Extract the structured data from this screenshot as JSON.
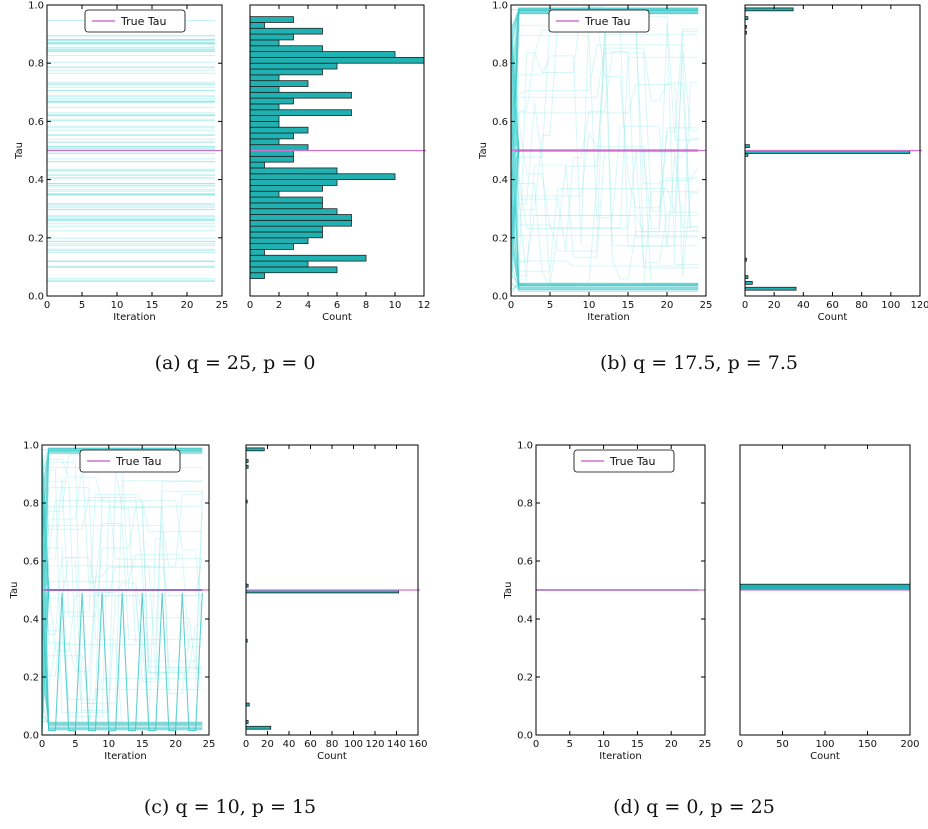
{
  "figure": {
    "legend_label": "True Tau",
    "true_tau": 0.5,
    "colors": {
      "trace": "#7fe3e3",
      "trace_bold": "#3cc8c8",
      "bar_fill": "#20b2b2",
      "bar_edge": "#222222",
      "true_tau_line": "#d070d0",
      "converged_line": "#4060d0"
    }
  },
  "chart_data": [
    {
      "id": "a",
      "caption": "(a) q = 25, p = 0",
      "type": "line",
      "xlabel": "Iteration",
      "ylabel": "Tau",
      "xlim": [
        0,
        25
      ],
      "ylim": [
        0,
        1
      ],
      "x_ticks": [
        "0",
        "5",
        "10",
        "15",
        "20",
        "25"
      ],
      "y_ticks": [
        "0.0",
        "0.2",
        "0.4",
        "0.6",
        "0.8",
        "1.0"
      ],
      "trace_style": "flat",
      "hist": {
        "type": "bar",
        "orientation": "horizontal",
        "xlabel": "Count",
        "xlim": [
          0,
          12
        ],
        "x_ticks": [
          "0",
          "2",
          "4",
          "6",
          "8",
          "10",
          "12"
        ],
        "bin_width": 0.02,
        "bins": [
          {
            "y": 0.06,
            "count": 1
          },
          {
            "y": 0.08,
            "count": 6
          },
          {
            "y": 0.1,
            "count": 4
          },
          {
            "y": 0.12,
            "count": 8
          },
          {
            "y": 0.14,
            "count": 1
          },
          {
            "y": 0.16,
            "count": 3
          },
          {
            "y": 0.18,
            "count": 4
          },
          {
            "y": 0.2,
            "count": 5
          },
          {
            "y": 0.22,
            "count": 5
          },
          {
            "y": 0.24,
            "count": 7
          },
          {
            "y": 0.26,
            "count": 7
          },
          {
            "y": 0.28,
            "count": 6
          },
          {
            "y": 0.3,
            "count": 5
          },
          {
            "y": 0.32,
            "count": 5
          },
          {
            "y": 0.34,
            "count": 2
          },
          {
            "y": 0.36,
            "count": 5
          },
          {
            "y": 0.38,
            "count": 6
          },
          {
            "y": 0.4,
            "count": 10
          },
          {
            "y": 0.42,
            "count": 6
          },
          {
            "y": 0.44,
            "count": 1
          },
          {
            "y": 0.46,
            "count": 3
          },
          {
            "y": 0.48,
            "count": 3
          },
          {
            "y": 0.5,
            "count": 4
          },
          {
            "y": 0.52,
            "count": 2
          },
          {
            "y": 0.54,
            "count": 3
          },
          {
            "y": 0.56,
            "count": 4
          },
          {
            "y": 0.58,
            "count": 2
          },
          {
            "y": 0.6,
            "count": 2
          },
          {
            "y": 0.62,
            "count": 7
          },
          {
            "y": 0.64,
            "count": 2
          },
          {
            "y": 0.66,
            "count": 3
          },
          {
            "y": 0.68,
            "count": 7
          },
          {
            "y": 0.7,
            "count": 2
          },
          {
            "y": 0.72,
            "count": 4
          },
          {
            "y": 0.74,
            "count": 2
          },
          {
            "y": 0.76,
            "count": 5
          },
          {
            "y": 0.78,
            "count": 6
          },
          {
            "y": 0.8,
            "count": 12
          },
          {
            "y": 0.82,
            "count": 10
          },
          {
            "y": 0.84,
            "count": 5
          },
          {
            "y": 0.86,
            "count": 2
          },
          {
            "y": 0.88,
            "count": 3
          },
          {
            "y": 0.9,
            "count": 5
          },
          {
            "y": 0.92,
            "count": 1
          },
          {
            "y": 0.94,
            "count": 3
          }
        ]
      }
    },
    {
      "id": "b",
      "caption": "(b) q = 17.5, p = 7.5",
      "type": "line",
      "xlabel": "Iteration",
      "ylabel": "Tau",
      "xlim": [
        0,
        25
      ],
      "ylim": [
        0,
        1
      ],
      "x_ticks": [
        "0",
        "5",
        "10",
        "15",
        "20",
        "25"
      ],
      "y_ticks": [
        "0.0",
        "0.2",
        "0.4",
        "0.6",
        "0.8",
        "1.0"
      ],
      "trace_style": "converge",
      "hist": {
        "type": "bar",
        "orientation": "horizontal",
        "xlabel": "Count",
        "xlim": [
          0,
          120
        ],
        "x_ticks": [
          "0",
          "20",
          "40",
          "60",
          "80",
          "100",
          "120"
        ],
        "bin_width": 0.01,
        "bins": [
          {
            "y": 0.02,
            "count": 35
          },
          {
            "y": 0.04,
            "count": 5
          },
          {
            "y": 0.06,
            "count": 2
          },
          {
            "y": 0.12,
            "count": 1
          },
          {
            "y": 0.48,
            "count": 2
          },
          {
            "y": 0.49,
            "count": 113
          },
          {
            "y": 0.51,
            "count": 3
          },
          {
            "y": 0.9,
            "count": 1
          },
          {
            "y": 0.92,
            "count": 1
          },
          {
            "y": 0.95,
            "count": 2
          },
          {
            "y": 0.98,
            "count": 33
          }
        ]
      }
    },
    {
      "id": "c",
      "caption": "(c) q = 10, p = 15",
      "type": "line",
      "xlabel": "Iteration",
      "ylabel": "Tau",
      "xlim": [
        0,
        25
      ],
      "ylim": [
        0,
        1
      ],
      "x_ticks": [
        "0",
        "5",
        "10",
        "15",
        "20",
        "25"
      ],
      "y_ticks": [
        "0.0",
        "0.2",
        "0.4",
        "0.6",
        "0.8",
        "1.0"
      ],
      "trace_style": "oscillate",
      "hist": {
        "type": "bar",
        "orientation": "horizontal",
        "xlabel": "Count",
        "xlim": [
          0,
          160
        ],
        "x_ticks": [
          "0",
          "20",
          "40",
          "60",
          "80",
          "100",
          "120",
          "140",
          "160"
        ],
        "bin_width": 0.01,
        "bins": [
          {
            "y": 0.02,
            "count": 23
          },
          {
            "y": 0.04,
            "count": 2
          },
          {
            "y": 0.1,
            "count": 3
          },
          {
            "y": 0.32,
            "count": 1
          },
          {
            "y": 0.49,
            "count": 142
          },
          {
            "y": 0.51,
            "count": 2
          },
          {
            "y": 0.8,
            "count": 1
          },
          {
            "y": 0.92,
            "count": 2
          },
          {
            "y": 0.94,
            "count": 2
          },
          {
            "y": 0.98,
            "count": 17
          }
        ]
      }
    },
    {
      "id": "d",
      "caption": "(d) q = 0, p = 25",
      "type": "line",
      "xlabel": "Iteration",
      "ylabel": "Tau",
      "xlim": [
        0,
        25
      ],
      "ylim": [
        0,
        1
      ],
      "x_ticks": [
        "0",
        "5",
        "10",
        "15",
        "20",
        "25"
      ],
      "y_ticks": [
        "0.0",
        "0.2",
        "0.4",
        "0.6",
        "0.8",
        "1.0"
      ],
      "trace_style": "constant",
      "hist": {
        "type": "bar",
        "orientation": "horizontal",
        "xlabel": "Count",
        "xlim": [
          0,
          200
        ],
        "x_ticks": [
          "0",
          "50",
          "100",
          "150",
          "200"
        ],
        "bin_width": 0.02,
        "bins": [
          {
            "y": 0.5,
            "count": 200
          }
        ]
      }
    }
  ]
}
